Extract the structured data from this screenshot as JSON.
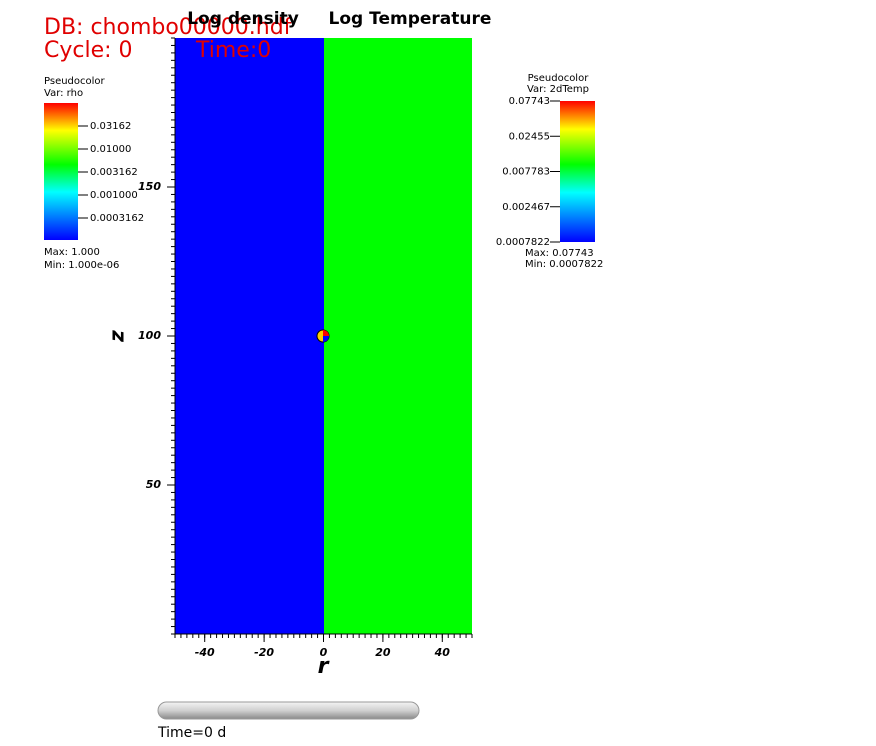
{
  "header": {
    "db": "DB: chombo00000.hdf",
    "cycle": "Cycle: 0",
    "time": "Time:0"
  },
  "plot": {
    "left_title": "Log density",
    "right_title": "Log Temperature",
    "x_label": "r",
    "y_label": "z",
    "xlim": [
      -50,
      50
    ],
    "ylim": [
      0,
      200
    ],
    "xticks": [
      -40,
      -20,
      0,
      20,
      40
    ],
    "yticks": [
      50,
      100,
      150
    ]
  },
  "legend_left": {
    "plot": "Pseudocolor",
    "var": "Var: rho",
    "labels": [
      "0.03162",
      "0.01000",
      "0.003162",
      "0.001000",
      "0.0003162"
    ],
    "max": "Max:  1.000",
    "min": "Min:  1.000e-06"
  },
  "legend_right": {
    "plot": "Pseudocolor",
    "var": "Var: 2dTemp",
    "labels": [
      "0.07743",
      "0.02455",
      "0.007783",
      "0.002467",
      "0.0007822"
    ],
    "max": "Max:  0.07743",
    "min": "Min:  0.0007822"
  },
  "slider": {
    "label": "Time=0 d"
  }
}
